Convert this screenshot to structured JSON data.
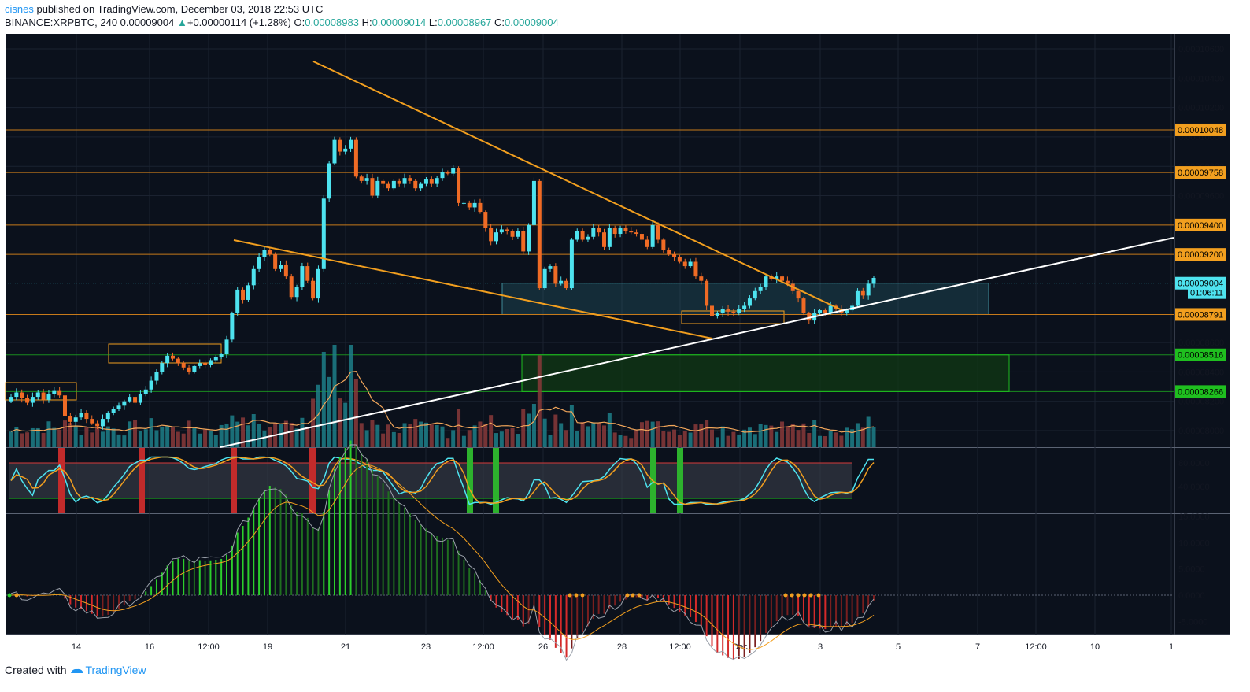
{
  "header": {
    "author": "cisnes",
    "published_text": " published on TradingView.com, December 03, 2018 22:53 UTC",
    "symbol": "BINANCE:XRPBTC, 240",
    "last": "0.00009004",
    "change": "+0.00000114 (+1.28%)",
    "change_arrow": "▲",
    "o_label": "O:",
    "o": "0.00008983",
    "h_label": "H:",
    "h": "0.00009014",
    "l_label": "L:",
    "l": "0.00008967",
    "c_label": "C:",
    "c": "0.00009004"
  },
  "footer": {
    "created_with": "Created with",
    "brand": "TradingView"
  },
  "colors": {
    "bg": "#0b111c",
    "up": "#4ee3ef",
    "down": "#ef6b25",
    "trend": "#f29f1f",
    "support": "#ffffff",
    "zone_green": "#1fbf1f",
    "zone_cyan": "#2a6d7a",
    "grid": "#1b2230"
  },
  "price_axis": {
    "ticks": [
      "0.00010600",
      "0.00010400",
      "0.00010200",
      "0.00010000",
      "0.00009800",
      "0.00009600",
      "0.00008600",
      "0.00008400",
      "0.00008200",
      "0.00008000"
    ],
    "tick_values": [
      0.000106,
      0.000104,
      0.000102,
      0.0001,
      9.8e-05,
      9.6e-05,
      8.6e-05,
      8.4e-05,
      8.2e-05,
      8e-05
    ],
    "badges": [
      {
        "text": "0.00010048",
        "value": 0.00010048,
        "color": "#f29f1f",
        "text_color": "#000000"
      },
      {
        "text": "0.00009758",
        "value": 9.758e-05,
        "color": "#f29f1f",
        "text_color": "#000000"
      },
      {
        "text": "0.00009400",
        "value": 9.4e-05,
        "color": "#f29f1f",
        "text_color": "#000000"
      },
      {
        "text": "0.00009200",
        "value": 9.2e-05,
        "color": "#f29f1f",
        "text_color": "#000000"
      },
      {
        "text": "0.00009004",
        "value": 9.004e-05,
        "color": "#4ee3ef",
        "text_color": "#000000"
      },
      {
        "text": "01:06:11",
        "value": 8.94e-05,
        "color": "#4ee3ef",
        "text_color": "#000000"
      },
      {
        "text": "0.00008791",
        "value": 8.791e-05,
        "color": "#f29f1f",
        "text_color": "#000000"
      },
      {
        "text": "0.00008516",
        "value": 8.516e-05,
        "color": "#1fbf1f",
        "text_color": "#000000"
      },
      {
        "text": "0.00008266",
        "value": 8.266e-05,
        "color": "#1fbf1f",
        "text_color": "#000000"
      }
    ]
  },
  "time_axis": [
    "14",
    "16",
    "12:00",
    "19",
    "21",
    "23",
    "12:00",
    "26",
    "28",
    "12:00",
    "Dec",
    "3",
    "5",
    "7",
    "12:00",
    "10",
    "1"
  ],
  "stoch_axis": {
    "ticks": [
      "80.0000",
      "40.0000"
    ],
    "tick_values": [
      80,
      40
    ]
  },
  "macd_axis": {
    "ticks": [
      "15.0000",
      "10.0000",
      "5.0000",
      "0.0000",
      "-5.0000"
    ],
    "tick_values": [
      15,
      10,
      5,
      0,
      -5
    ]
  },
  "chart_data": [
    {
      "type": "candlestick",
      "title": "BINANCE:XRPBTC, 240",
      "timeframe": "240",
      "x_start": "2018-11-12",
      "bar_hours": 4,
      "horizontal_levels": [
        0.00010048,
        9.758e-05,
        9.4e-05,
        9.2e-05,
        8.791e-05
      ],
      "close": [
        8.23e-05,
        8.26e-05,
        8.22e-05,
        8.19e-05,
        8.23e-05,
        8.26e-05,
        8.21e-05,
        8.25e-05,
        8.27e-05,
        8.24e-05,
        8.1e-05,
        8.06e-05,
        8.09e-05,
        8.12e-05,
        8.08e-05,
        8.05e-05,
        8.03e-05,
        8.08e-05,
        8.12e-05,
        8.15e-05,
        8.17e-05,
        8.2e-05,
        8.23e-05,
        8.19e-05,
        8.25e-05,
        8.28e-05,
        8.34e-05,
        8.4e-05,
        8.46e-05,
        8.51e-05,
        8.49e-05,
        8.46e-05,
        8.43e-05,
        8.4e-05,
        8.44e-05,
        8.46e-05,
        8.45e-05,
        8.48e-05,
        8.5e-05,
        8.52e-05,
        8.62e-05,
        8.8e-05,
        8.96e-05,
        8.89e-05,
        8.99e-05,
        9.1e-05,
        9.18e-05,
        9.23e-05,
        9.2e-05,
        9.1e-05,
        9.13e-05,
        9.05e-05,
        8.91e-05,
        8.98e-05,
        9.12e-05,
        9.02e-05,
        8.9e-05,
        9.1e-05,
        9.58e-05,
        9.82e-05,
        9.98e-05,
        9.9e-05,
        9.92e-05,
        9.98e-05,
        9.73e-05,
        9.7e-05,
        9.72e-05,
        9.6e-05,
        9.7e-05,
        9.68e-05,
        9.65e-05,
        9.7e-05,
        9.68e-05,
        9.72e-05,
        9.7e-05,
        9.65e-05,
        9.68e-05,
        9.71e-05,
        9.68e-05,
        9.72e-05,
        9.76e-05,
        9.75e-05,
        9.79e-05,
        9.55e-05,
        9.55e-05,
        9.52e-05,
        9.55e-05,
        9.49e-05,
        9.38e-05,
        9.29e-05,
        9.35e-05,
        9.37e-05,
        9.36e-05,
        9.32e-05,
        9.36e-05,
        9.22e-05,
        9.4e-05,
        9.7e-05,
        8.97e-05,
        9.1e-05,
        9.12e-05,
        9e-05,
        9.02e-05,
        8.97e-05,
        9.3e-05,
        9.36e-05,
        9.3e-05,
        9.32e-05,
        9.38e-05,
        9.35e-05,
        9.25e-05,
        9.38e-05,
        9.34e-05,
        9.38e-05,
        9.36e-05,
        9.35e-05,
        9.34e-05,
        9.3e-05,
        9.25e-05,
        9.4e-05,
        9.3e-05,
        9.23e-05,
        9.2e-05,
        9.18e-05,
        9.15e-05,
        9.12e-05,
        9.15e-05,
        9.05e-05,
        9.02e-05,
        8.85e-05,
        8.78e-05,
        8.8e-05,
        8.83e-05,
        8.81e-05,
        8.8e-05,
        8.83e-05,
        8.85e-05,
        8.9e-05,
        8.95e-05,
        8.98e-05,
        9.05e-05,
        9.03e-05,
        9.05e-05,
        9.02e-05,
        9e-05,
        8.95e-05,
        8.9e-05,
        8.8e-05,
        8.75e-05,
        8.8e-05,
        8.82e-05,
        8.8e-05,
        8.85e-05,
        8.83e-05,
        8.8e-05,
        8.82e-05,
        8.85e-05,
        8.95e-05,
        8.92e-05,
        9e-05,
        9.04e-05
      ]
    },
    {
      "type": "stochastic_rsi",
      "levels": [
        80,
        20
      ],
      "ylim": [
        0,
        100
      ]
    },
    {
      "type": "macd_histogram",
      "ylim": [
        -7.5,
        15
      ]
    }
  ]
}
